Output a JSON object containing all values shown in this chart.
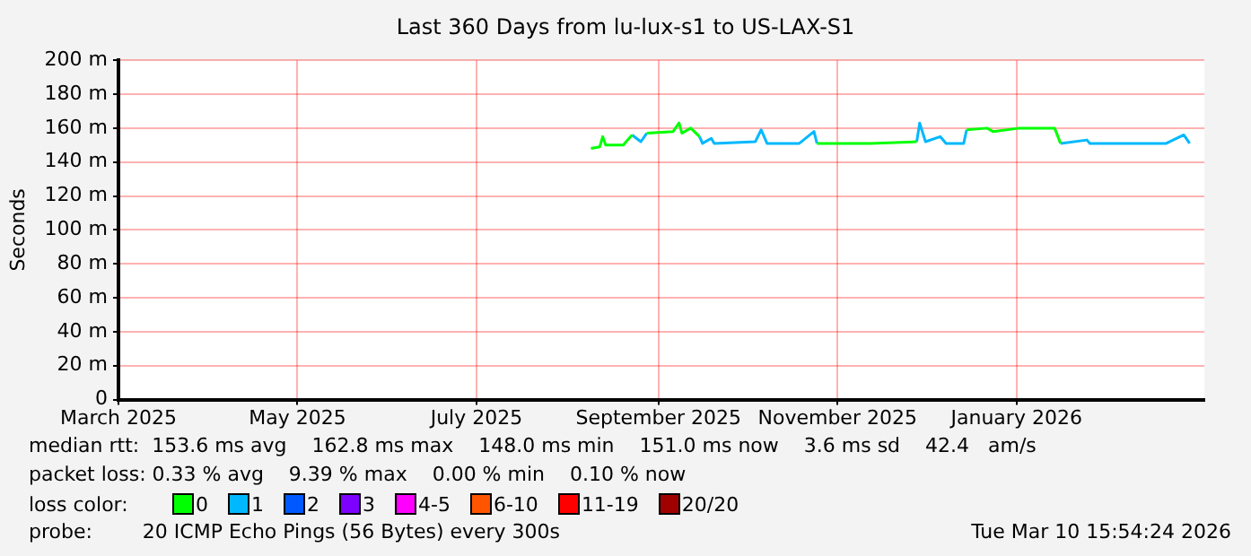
{
  "chart_data": {
    "type": "line",
    "title": "Last 360 Days from lu-lux-s1 to US-LAX-S1",
    "ylabel": "Seconds",
    "legend_title": "loss color:",
    "legend": "bottom",
    "grid": true,
    "marker": "none",
    "line_style": "solid",
    "x": [
      "2025-08-09",
      "2025-08-12",
      "2025-08-13",
      "2025-08-14",
      "2025-08-20",
      "2025-08-23",
      "2025-08-26",
      "2025-08-28",
      "2025-09-06",
      "2025-09-08",
      "2025-09-09",
      "2025-09-12",
      "2025-09-15",
      "2025-09-16",
      "2025-09-19",
      "2025-09-20",
      "2025-10-04",
      "2025-10-06",
      "2025-10-08",
      "2025-10-19",
      "2025-10-24",
      "2025-10-25",
      "2025-11-12",
      "2025-11-28",
      "2025-11-29",
      "2025-12-01",
      "2025-12-06",
      "2025-12-08",
      "2025-12-14",
      "2025-12-15",
      "2025-12-22",
      "2025-12-24",
      "2026-01-02",
      "2026-01-14",
      "2026-01-16",
      "2026-01-25",
      "2026-01-26",
      "2026-02-11",
      "2026-02-21",
      "2026-02-27",
      "2026-03-01"
    ],
    "xlim": [
      "2025-03-01",
      "2026-03-06"
    ],
    "xticks": [
      {
        "value": "2025-03-01",
        "label": "March 2025"
      },
      {
        "value": "2025-05-01",
        "label": "May 2025"
      },
      {
        "value": "2025-07-01",
        "label": "July 2025"
      },
      {
        "value": "2025-09-01",
        "label": "September 2025"
      },
      {
        "value": "2025-11-01",
        "label": "November 2025"
      },
      {
        "value": "2026-01-01",
        "label": "January 2026"
      }
    ],
    "ylim": [
      0,
      200
    ],
    "yticks": [
      0,
      {
        "value": 20,
        "label": "20 m"
      },
      {
        "value": 40,
        "label": "40 m"
      },
      {
        "value": 60,
        "label": "60 m"
      },
      {
        "value": 80,
        "label": "80 m"
      },
      {
        "value": 100,
        "label": "100 m"
      },
      {
        "value": 120,
        "label": "120 m"
      },
      {
        "value": 140,
        "label": "140 m"
      },
      {
        "value": 160,
        "label": "160 m"
      },
      {
        "value": 180,
        "label": "180 m"
      },
      {
        "value": 200,
        "label": "200 m"
      }
    ],
    "series": [
      {
        "name": "0",
        "color": "#00ff00",
        "values": [
          148,
          149,
          155,
          150,
          150,
          156,
          null,
          157,
          158,
          163,
          157,
          160,
          155,
          null,
          null,
          null,
          null,
          null,
          null,
          null,
          null,
          151,
          151,
          152,
          null,
          null,
          null,
          null,
          null,
          159,
          160,
          158,
          160,
          160,
          151,
          null,
          null,
          null,
          null,
          null,
          null
        ]
      },
      {
        "name": "1",
        "color": "#00b8ff",
        "values": [
          null,
          null,
          null,
          null,
          null,
          156,
          152,
          157,
          null,
          null,
          null,
          null,
          155,
          151,
          154,
          151,
          152,
          159,
          151,
          151,
          158,
          151,
          null,
          152,
          163,
          152,
          155,
          151,
          151,
          159,
          null,
          null,
          null,
          null,
          151,
          153,
          151,
          151,
          151,
          156,
          151
        ]
      },
      {
        "name": "2",
        "color": "#0059ff",
        "values": [
          null,
          null,
          null,
          null,
          null,
          null,
          null,
          null,
          null,
          null,
          null,
          null,
          null,
          null,
          null,
          null,
          null,
          null,
          null,
          null,
          null,
          null,
          null,
          null,
          null,
          null,
          null,
          null,
          null,
          null,
          null,
          null,
          null,
          null,
          null,
          null,
          null,
          null,
          null,
          null,
          null
        ]
      },
      {
        "name": "3",
        "color": "#7e00ff",
        "values": [
          null,
          null,
          null,
          null,
          null,
          null,
          null,
          null,
          null,
          null,
          null,
          null,
          null,
          null,
          null,
          null,
          null,
          null,
          null,
          null,
          null,
          null,
          null,
          null,
          null,
          null,
          null,
          null,
          null,
          null,
          null,
          null,
          null,
          null,
          null,
          null,
          null,
          null,
          null,
          null,
          null
        ]
      },
      {
        "name": "4-5",
        "color": "#ff00ff",
        "values": [
          null,
          null,
          null,
          null,
          null,
          null,
          null,
          null,
          null,
          null,
          null,
          null,
          null,
          null,
          null,
          null,
          null,
          null,
          null,
          null,
          null,
          null,
          null,
          null,
          null,
          null,
          null,
          null,
          null,
          null,
          null,
          null,
          null,
          null,
          null,
          null,
          null,
          null,
          null,
          null,
          null
        ]
      },
      {
        "name": "6-10",
        "color": "#ff5500",
        "values": [
          null,
          null,
          null,
          null,
          null,
          null,
          null,
          null,
          null,
          null,
          null,
          null,
          null,
          null,
          null,
          null,
          null,
          null,
          null,
          null,
          null,
          null,
          null,
          null,
          null,
          null,
          null,
          null,
          null,
          null,
          null,
          null,
          null,
          null,
          null,
          null,
          null,
          null,
          null,
          null,
          null
        ]
      },
      {
        "name": "11-19",
        "color": "#ff0000",
        "values": [
          null,
          null,
          null,
          null,
          null,
          null,
          null,
          null,
          null,
          null,
          null,
          null,
          null,
          null,
          null,
          null,
          null,
          null,
          null,
          null,
          null,
          null,
          null,
          null,
          null,
          null,
          null,
          null,
          null,
          null,
          null,
          null,
          null,
          null,
          null,
          null,
          null,
          null,
          null,
          null,
          null
        ]
      },
      {
        "name": "20/20",
        "color": "#a10000",
        "values": [
          null,
          null,
          null,
          null,
          null,
          null,
          null,
          null,
          null,
          null,
          null,
          null,
          null,
          null,
          null,
          null,
          null,
          null,
          null,
          null,
          null,
          null,
          null,
          null,
          null,
          null,
          null,
          null,
          null,
          null,
          null,
          null,
          null,
          null,
          null,
          null,
          null,
          null,
          null,
          null,
          null
        ]
      }
    ],
    "annotations": [
      "median rtt:  153.6 ms avg    162.8 ms max    148.0 ms min    151.0 ms now    3.6 ms sd    42.4   am/s",
      "packet loss: 0.33 % avg    9.39 % max    0.00 % min    0.10 % now",
      "probe:        20 ICMP Echo Pings (56 Bytes) every 300s",
      "Tue Mar 10 15:54:24 2026"
    ]
  }
}
